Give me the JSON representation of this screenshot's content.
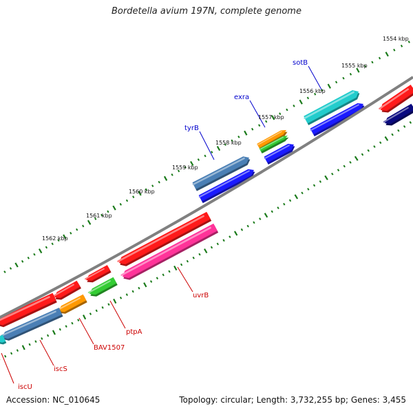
{
  "title": "Bordetella avium 197N, complete genome",
  "accession": "Accession: NC_010645",
  "summary": "Topology: circular; Length: 3,732,255 bp; Genes: 3,455",
  "colors": {
    "backbone": "#808080",
    "ticks": "#1a7a1a",
    "forward_label": "#0000cc",
    "reverse_label": "#cc0000",
    "red": "#ff1a1a",
    "pink": "#ff3399",
    "orange": "#ff9900",
    "green": "#33cc33",
    "steelblue": "#4a7fb5",
    "blue": "#1a1aff",
    "cyan": "#22cccc",
    "navy": "#0a0a80"
  },
  "kbp_labels": [
    {
      "text": "1554 kbp"
    },
    {
      "text": "1555 kbp"
    },
    {
      "text": "1556 kbp"
    },
    {
      "text": "1557 kbp"
    },
    {
      "text": "1558 kbp"
    },
    {
      "text": "1559 kbp"
    },
    {
      "text": "1560 kbp"
    },
    {
      "text": "1561 kbp"
    },
    {
      "text": "1562 kbp"
    }
  ],
  "gene_labels": [
    {
      "text": "sotB",
      "strand": "forward"
    },
    {
      "text": "exra",
      "strand": "forward"
    },
    {
      "text": "tyrB",
      "strand": "forward"
    },
    {
      "text": "uvrB",
      "strand": "reverse"
    },
    {
      "text": "ptpA",
      "strand": "reverse"
    },
    {
      "text": "BAV1507",
      "strand": "reverse"
    },
    {
      "text": "iscS",
      "strand": "reverse"
    },
    {
      "text": "iscU",
      "strand": "reverse"
    }
  ],
  "features": [
    {
      "color": "cyan",
      "dir": "right"
    },
    {
      "color": "blue",
      "dir": "right"
    },
    {
      "color": "orange",
      "dir": "right"
    },
    {
      "color": "green",
      "dir": "right"
    },
    {
      "color": "blue",
      "dir": "right"
    },
    {
      "color": "steelblue",
      "dir": "right"
    },
    {
      "color": "blue",
      "dir": "right"
    },
    {
      "color": "red",
      "dir": "left"
    },
    {
      "color": "navy",
      "dir": "left"
    },
    {
      "color": "red",
      "dir": "left"
    },
    {
      "color": "pink",
      "dir": "left"
    },
    {
      "color": "red",
      "dir": "left"
    },
    {
      "color": "green",
      "dir": "left"
    },
    {
      "color": "red",
      "dir": "left"
    },
    {
      "color": "orange",
      "dir": "left"
    },
    {
      "color": "red",
      "dir": "left"
    },
    {
      "color": "steelblue",
      "dir": "left"
    },
    {
      "color": "cyan",
      "dir": "left"
    }
  ]
}
